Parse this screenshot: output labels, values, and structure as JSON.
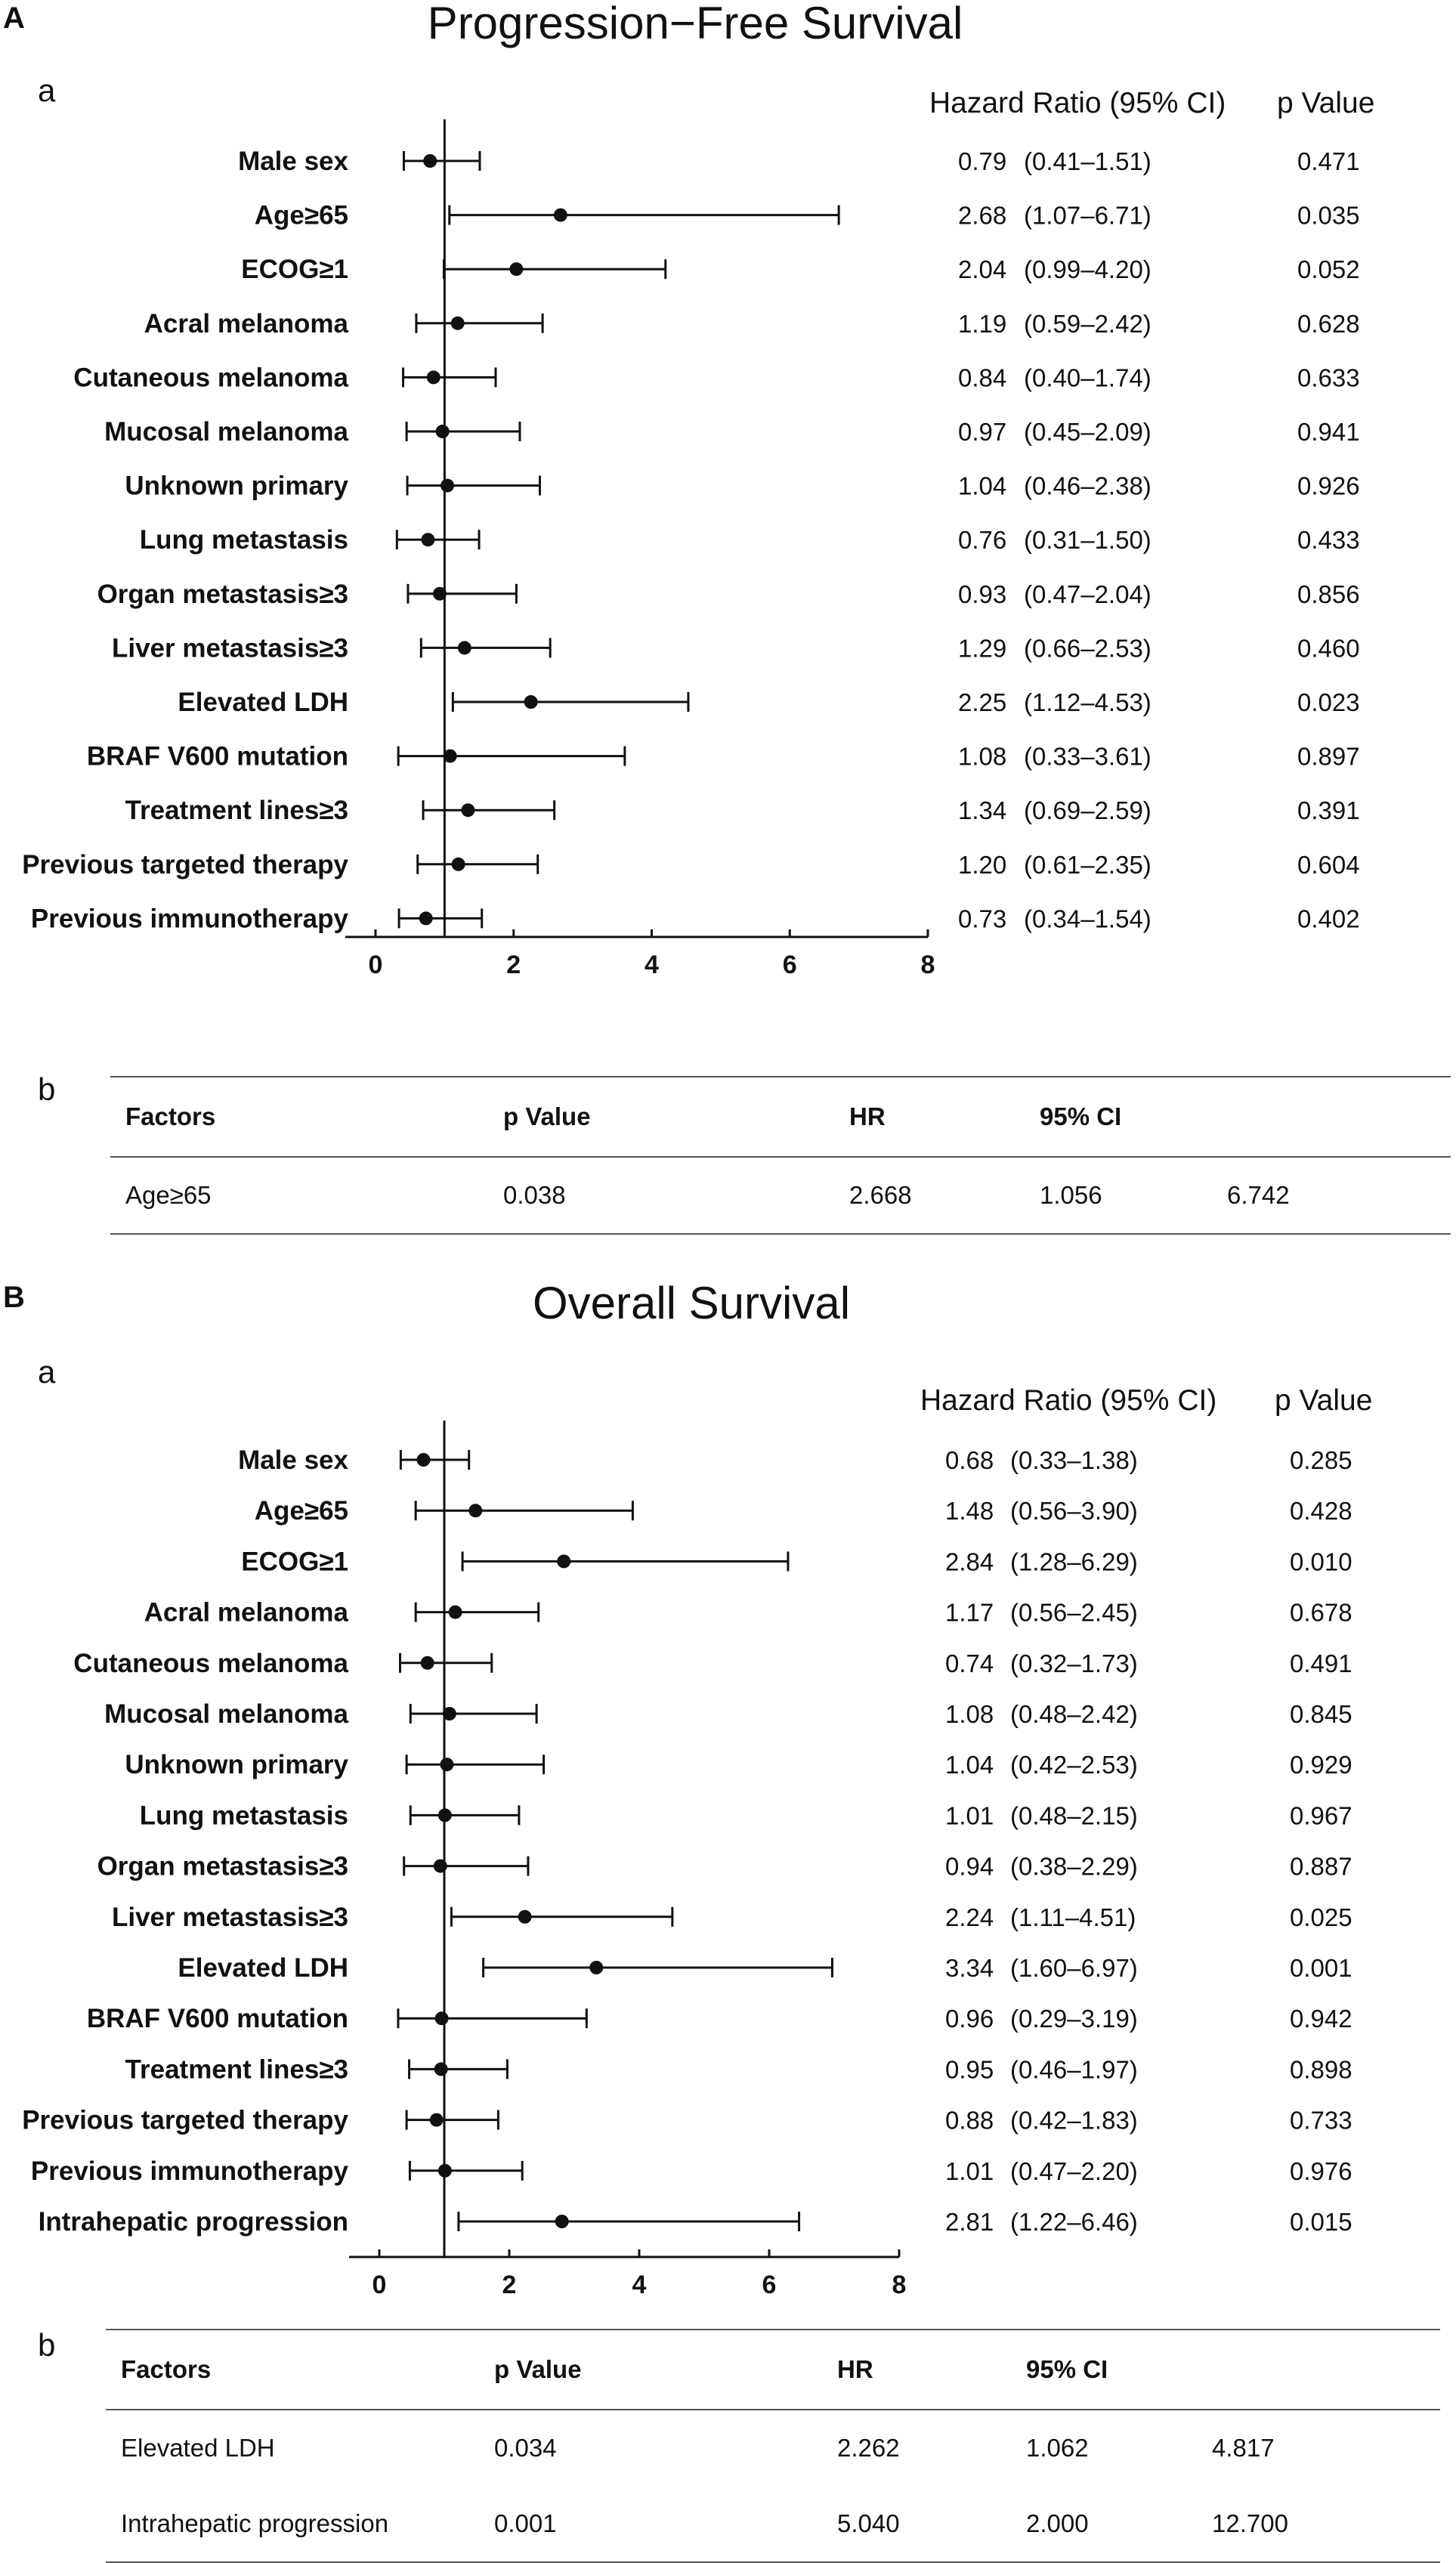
{
  "panels": {
    "A": {
      "letter": "A",
      "title": "Progression−Free Survival",
      "forest_letter": "a",
      "header_hr": "Hazard Ratio (95% CI)",
      "header_p": "p Value",
      "table_letter": "b",
      "table": {
        "headers": [
          "Factors",
          "p Value",
          "HR",
          "95% CI",
          ""
        ],
        "rows": [
          [
            "Age≥65",
            "0.038",
            "2.668",
            "1.056",
            "6.742"
          ]
        ]
      }
    },
    "B": {
      "letter": "B",
      "title": "Overall Survival",
      "forest_letter": "a",
      "header_hr": "Hazard Ratio (95% CI)",
      "header_p": "p Value",
      "table_letter": "b",
      "table": {
        "headers": [
          "Factors",
          "p Value",
          "HR",
          "95% CI",
          ""
        ],
        "rows": [
          [
            "Elevated LDH",
            "0.034",
            "2.262",
            "1.062",
            "4.817"
          ],
          [
            "Intrahepatic progression",
            "0.001",
            "5.040",
            "2.000",
            "12.700"
          ]
        ]
      }
    }
  },
  "colors": {
    "significant": "#8b1a1a",
    "text": "#111111"
  },
  "chart_data": [
    {
      "type": "forest",
      "title": "Progression−Free Survival",
      "xlim": [
        0,
        8
      ],
      "xticks": [
        "0",
        "2",
        "4",
        "6",
        "8"
      ],
      "reference_line": 1,
      "rows": [
        {
          "label": "Male sex",
          "hr": 0.79,
          "lo": 0.41,
          "hi": 1.51,
          "hr_text": "0.79",
          "ci_text": "(0.41–1.51)",
          "p": "0.471",
          "sig": false
        },
        {
          "label": "Age≥65",
          "hr": 2.68,
          "lo": 1.07,
          "hi": 6.71,
          "hr_text": "2.68",
          "ci_text": "(1.07–6.71)",
          "p": "0.035",
          "sig": true
        },
        {
          "label": "ECOG≥1",
          "hr": 2.04,
          "lo": 0.99,
          "hi": 4.2,
          "hr_text": "2.04",
          "ci_text": "(0.99–4.20)",
          "p": "0.052",
          "sig": false
        },
        {
          "label": "Acral melanoma",
          "hr": 1.19,
          "lo": 0.59,
          "hi": 2.42,
          "hr_text": "1.19",
          "ci_text": "(0.59–2.42)",
          "p": "0.628",
          "sig": false
        },
        {
          "label": "Cutaneous melanoma",
          "hr": 0.84,
          "lo": 0.4,
          "hi": 1.74,
          "hr_text": "0.84",
          "ci_text": "(0.40–1.74)",
          "p": "0.633",
          "sig": false
        },
        {
          "label": "Mucosal melanoma",
          "hr": 0.97,
          "lo": 0.45,
          "hi": 2.09,
          "hr_text": "0.97",
          "ci_text": "(0.45–2.09)",
          "p": "0.941",
          "sig": false
        },
        {
          "label": "Unknown primary",
          "hr": 1.04,
          "lo": 0.46,
          "hi": 2.38,
          "hr_text": "1.04",
          "ci_text": "(0.46–2.38)",
          "p": "0.926",
          "sig": false
        },
        {
          "label": "Lung metastasis",
          "hr": 0.76,
          "lo": 0.31,
          "hi": 1.5,
          "hr_text": "0.76",
          "ci_text": "(0.31–1.50)",
          "p": "0.433",
          "sig": false
        },
        {
          "label": "Organ metastasis≥3",
          "hr": 0.93,
          "lo": 0.47,
          "hi": 2.04,
          "hr_text": "0.93",
          "ci_text": "(0.47–2.04)",
          "p": "0.856",
          "sig": false
        },
        {
          "label": "Liver metastasis≥3",
          "hr": 1.29,
          "lo": 0.66,
          "hi": 2.53,
          "hr_text": "1.29",
          "ci_text": "(0.66–2.53)",
          "p": "0.460",
          "sig": false
        },
        {
          "label": "Elevated LDH",
          "hr": 2.25,
          "lo": 1.12,
          "hi": 4.53,
          "hr_text": "2.25",
          "ci_text": "(1.12–4.53)",
          "p": "0.023",
          "sig": true
        },
        {
          "label": "BRAF V600 mutation",
          "hr": 1.08,
          "lo": 0.33,
          "hi": 3.61,
          "hr_text": "1.08",
          "ci_text": "(0.33–3.61)",
          "p": "0.897",
          "sig": false
        },
        {
          "label": "Treatment lines≥3",
          "hr": 1.34,
          "lo": 0.69,
          "hi": 2.59,
          "hr_text": "1.34",
          "ci_text": "(0.69–2.59)",
          "p": "0.391",
          "sig": false
        },
        {
          "label": "Previous targeted therapy",
          "hr": 1.2,
          "lo": 0.61,
          "hi": 2.35,
          "hr_text": "1.20",
          "ci_text": "(0.61–2.35)",
          "p": "0.604",
          "sig": false
        },
        {
          "label": "Previous immunotherapy",
          "hr": 0.73,
          "lo": 0.34,
          "hi": 1.54,
          "hr_text": "0.73",
          "ci_text": "(0.34–1.54)",
          "p": "0.402",
          "sig": false
        }
      ]
    },
    {
      "type": "forest",
      "title": "Overall Survival",
      "xlim": [
        0,
        8
      ],
      "xticks": [
        "0",
        "2",
        "4",
        "6",
        "8"
      ],
      "reference_line": 1,
      "rows": [
        {
          "label": "Male sex",
          "hr": 0.68,
          "lo": 0.33,
          "hi": 1.38,
          "hr_text": "0.68",
          "ci_text": "(0.33–1.38)",
          "p": "0.285",
          "sig": false
        },
        {
          "label": "Age≥65",
          "hr": 1.48,
          "lo": 0.56,
          "hi": 3.9,
          "hr_text": "1.48",
          "ci_text": "(0.56–3.90)",
          "p": "0.428",
          "sig": false
        },
        {
          "label": "ECOG≥1",
          "hr": 2.84,
          "lo": 1.28,
          "hi": 6.29,
          "hr_text": "2.84",
          "ci_text": "(1.28–6.29)",
          "p": "0.010",
          "sig": true
        },
        {
          "label": "Acral melanoma",
          "hr": 1.17,
          "lo": 0.56,
          "hi": 2.45,
          "hr_text": "1.17",
          "ci_text": "(0.56–2.45)",
          "p": "0.678",
          "sig": false
        },
        {
          "label": "Cutaneous melanoma",
          "hr": 0.74,
          "lo": 0.32,
          "hi": 1.73,
          "hr_text": "0.74",
          "ci_text": "(0.32–1.73)",
          "p": "0.491",
          "sig": false
        },
        {
          "label": "Mucosal melanoma",
          "hr": 1.08,
          "lo": 0.48,
          "hi": 2.42,
          "hr_text": "1.08",
          "ci_text": "(0.48–2.42)",
          "p": "0.845",
          "sig": false
        },
        {
          "label": "Unknown primary",
          "hr": 1.04,
          "lo": 0.42,
          "hi": 2.53,
          "hr_text": "1.04",
          "ci_text": "(0.42–2.53)",
          "p": "0.929",
          "sig": false
        },
        {
          "label": "Lung metastasis",
          "hr": 1.01,
          "lo": 0.48,
          "hi": 2.15,
          "hr_text": "1.01",
          "ci_text": "(0.48–2.15)",
          "p": "0.967",
          "sig": false
        },
        {
          "label": "Organ metastasis≥3",
          "hr": 0.94,
          "lo": 0.38,
          "hi": 2.29,
          "hr_text": "0.94",
          "ci_text": "(0.38–2.29)",
          "p": "0.887",
          "sig": false
        },
        {
          "label": "Liver metastasis≥3",
          "hr": 2.24,
          "lo": 1.11,
          "hi": 4.51,
          "hr_text": "2.24",
          "ci_text": "(1.11–4.51)",
          "p": "0.025",
          "sig": true
        },
        {
          "label": "Elevated LDH",
          "hr": 3.34,
          "lo": 1.6,
          "hi": 6.97,
          "hr_text": "3.34",
          "ci_text": "(1.60–6.97)",
          "p": "0.001",
          "sig": true
        },
        {
          "label": "BRAF V600 mutation",
          "hr": 0.96,
          "lo": 0.29,
          "hi": 3.19,
          "hr_text": "0.96",
          "ci_text": "(0.29–3.19)",
          "p": "0.942",
          "sig": false
        },
        {
          "label": "Treatment lines≥3",
          "hr": 0.95,
          "lo": 0.46,
          "hi": 1.97,
          "hr_text": "0.95",
          "ci_text": "(0.46–1.97)",
          "p": "0.898",
          "sig": false
        },
        {
          "label": "Previous targeted therapy",
          "hr": 0.88,
          "lo": 0.42,
          "hi": 1.83,
          "hr_text": "0.88",
          "ci_text": "(0.42–1.83)",
          "p": "0.733",
          "sig": false
        },
        {
          "label": "Previous immunotherapy",
          "hr": 1.01,
          "lo": 0.47,
          "hi": 2.2,
          "hr_text": "1.01",
          "ci_text": "(0.47–2.20)",
          "p": "0.976",
          "sig": false
        },
        {
          "label": "Intrahepatic progression",
          "hr": 2.81,
          "lo": 1.22,
          "hi": 6.46,
          "hr_text": "2.81",
          "ci_text": "(1.22–6.46)",
          "p": "0.015",
          "sig": true
        }
      ]
    }
  ]
}
